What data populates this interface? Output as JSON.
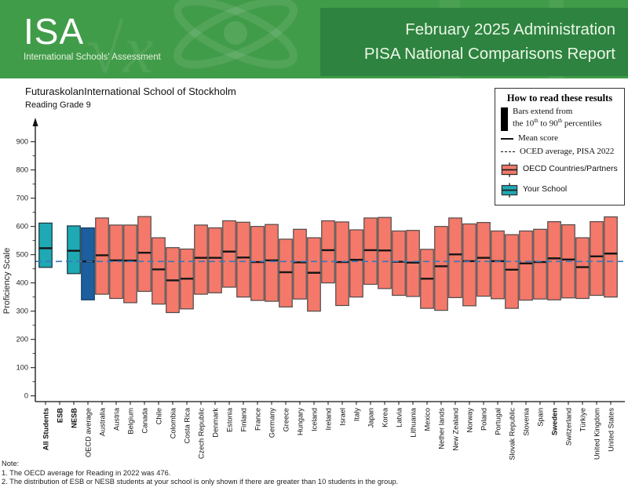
{
  "header": {
    "logo_text": "ISA",
    "logo_subtitle": "International Schools' Assessment",
    "title_line1": "February 2025 Administration",
    "title_line2": "PISA National Comparisons Report",
    "band_color": "#419c49",
    "panel_color": "#2e8340"
  },
  "report": {
    "school_title": "FuturaskolanInternational School of Stockholm",
    "subtitle": "Reading Grade 9"
  },
  "legend": {
    "title": "How to read these results",
    "bars_line1": "Bars extend from",
    "bars_line2_pre": "the 10",
    "sup_th": "th",
    "bars_line2_mid": " to 90",
    "bars_line2_post": " percentiles",
    "mean_label": "Mean score",
    "dashed_label": "OCED average, PISA 2022",
    "oecd_label": "OECD Countries/Partners",
    "school_label": "Your School"
  },
  "notes": {
    "heading": "Note:",
    "line1": "1. The OECD average for Reading in 2022 was 476.",
    "line2": "2. The distribution of ESB or NESB students at your school is only shown if there are greater than 10 students in the group."
  },
  "chart_data": {
    "type": "bar",
    "bar_style": "floating range bars from 10th to 90th percentile with mean line",
    "title": "Reading Grade 9",
    "school": "FuturaskolanInternational School of Stockholm",
    "xlabel": "",
    "ylabel": "Proficiency Scale",
    "ylim": [
      0,
      950
    ],
    "yticks": [
      0,
      100,
      200,
      300,
      400,
      500,
      600,
      700,
      800,
      900
    ],
    "grid": false,
    "legend_position": "top-right",
    "reference_line": {
      "value": 476,
      "label": "OCED average, PISA 2022",
      "color": "#3a76bb",
      "style": "dashed"
    },
    "colors": {
      "school": "#1fa9b4",
      "oecd_average": "#1d5f9e",
      "country": "#f4796a",
      "mean_line": "#161616",
      "axis": "#111111"
    },
    "bar_strokes": {
      "school": "#14333a",
      "oecd_average": "#123c66",
      "country": "#4f4a49"
    },
    "categories": [
      {
        "label": "All Students",
        "group": "school",
        "bold": true,
        "p10": 455,
        "mean": 523,
        "p90": 612
      },
      {
        "label": "ESB",
        "group": "school",
        "bold": true,
        "p10": null,
        "mean": null,
        "p90": null
      },
      {
        "label": "NESB",
        "group": "school",
        "bold": true,
        "p10": 433,
        "mean": 514,
        "p90": 602
      },
      {
        "label": "OECD average",
        "group": "oecd_average",
        "p10": 340,
        "mean": 476,
        "p90": 595
      },
      {
        "label": "Australia",
        "p10": 360,
        "mean": 498,
        "p90": 630
      },
      {
        "label": "Austria",
        "p10": 345,
        "mean": 480,
        "p90": 605
      },
      {
        "label": "Belgium",
        "p10": 330,
        "mean": 479,
        "p90": 605
      },
      {
        "label": "Canada",
        "p10": 370,
        "mean": 507,
        "p90": 635
      },
      {
        "label": "Chile",
        "p10": 325,
        "mean": 448,
        "p90": 560
      },
      {
        "label": "Colombia",
        "p10": 295,
        "mean": 409,
        "p90": 525
      },
      {
        "label": "Costa Rica",
        "p10": 308,
        "mean": 415,
        "p90": 520
      },
      {
        "label": "Czech Republic",
        "p10": 360,
        "mean": 489,
        "p90": 605
      },
      {
        "label": "Denmark",
        "p10": 365,
        "mean": 489,
        "p90": 595
      },
      {
        "label": "Estonia",
        "p10": 385,
        "mean": 511,
        "p90": 620
      },
      {
        "label": "Finland",
        "p10": 350,
        "mean": 490,
        "p90": 615
      },
      {
        "label": "France",
        "p10": 338,
        "mean": 474,
        "p90": 600
      },
      {
        "label": "Germany",
        "p10": 335,
        "mean": 480,
        "p90": 607
      },
      {
        "label": "Greece",
        "p10": 315,
        "mean": 438,
        "p90": 555
      },
      {
        "label": "Hungary",
        "p10": 343,
        "mean": 473,
        "p90": 590
      },
      {
        "label": "Iceland",
        "p10": 300,
        "mean": 436,
        "p90": 560
      },
      {
        "label": "Ireland",
        "p10": 400,
        "mean": 516,
        "p90": 620
      },
      {
        "label": "Israel",
        "p10": 320,
        "mean": 474,
        "p90": 616
      },
      {
        "label": "Italy",
        "p10": 350,
        "mean": 482,
        "p90": 588
      },
      {
        "label": "Japan",
        "p10": 395,
        "mean": 516,
        "p90": 630
      },
      {
        "label": "Korea",
        "p10": 380,
        "mean": 515,
        "p90": 632
      },
      {
        "label": "Latvia",
        "p10": 356,
        "mean": 475,
        "p90": 584
      },
      {
        "label": "Lithuania",
        "p10": 352,
        "mean": 472,
        "p90": 586
      },
      {
        "label": "Mexico",
        "p10": 310,
        "mean": 415,
        "p90": 519
      },
      {
        "label": "Nether lands",
        "p10": 303,
        "mean": 459,
        "p90": 600
      },
      {
        "label": "New Zealand",
        "p10": 348,
        "mean": 501,
        "p90": 630
      },
      {
        "label": "Norway",
        "p10": 319,
        "mean": 477,
        "p90": 609
      },
      {
        "label": "Poland",
        "p10": 353,
        "mean": 489,
        "p90": 614
      },
      {
        "label": "Portugal",
        "p10": 344,
        "mean": 477,
        "p90": 584
      },
      {
        "label": "Slovak Republic",
        "p10": 310,
        "mean": 447,
        "p90": 571
      },
      {
        "label": "Slovenia",
        "p10": 339,
        "mean": 469,
        "p90": 584
      },
      {
        "label": "Spain",
        "p10": 343,
        "mean": 474,
        "p90": 590
      },
      {
        "label": "Sweden",
        "bold": true,
        "p10": 340,
        "mean": 487,
        "p90": 617
      },
      {
        "label": "Switzerland",
        "p10": 347,
        "mean": 483,
        "p90": 606
      },
      {
        "label": "Türkiye",
        "p10": 345,
        "mean": 456,
        "p90": 560
      },
      {
        "label": "United Kingdom",
        "p10": 356,
        "mean": 494,
        "p90": 617
      },
      {
        "label": "United States",
        "p10": 350,
        "mean": 504,
        "p90": 634
      }
    ]
  }
}
